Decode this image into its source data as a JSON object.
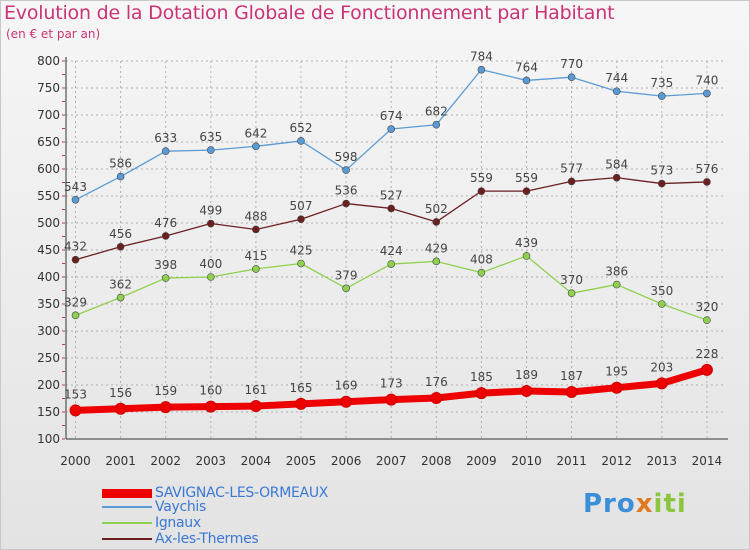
{
  "title": "Evolution de la Dotation Globale de Fonctionnement par Habitant",
  "subtitle": "(en € et par an)",
  "logo": {
    "part1": "Pro",
    "part2": "x",
    "part3": "iti"
  },
  "colors": {
    "savignac": "#ee0000",
    "vaychis": "#5b9bd5",
    "ignaux": "#8fd14f",
    "ax": "#6b1f1f",
    "grid": "#b0b0b0",
    "title": "#cc3377"
  },
  "chart_data": {
    "type": "line",
    "x": [
      "2000",
      "2001",
      "2002",
      "2003",
      "2004",
      "2005",
      "2006",
      "2007",
      "2008",
      "2009",
      "2010",
      "2011",
      "2012",
      "2013",
      "2014"
    ],
    "ylim": [
      100,
      800
    ],
    "yticks": [
      100,
      150,
      200,
      250,
      300,
      350,
      400,
      450,
      500,
      550,
      600,
      650,
      700,
      750,
      800
    ],
    "grid": true,
    "legend_position": "bottom-left",
    "series": [
      {
        "name": "SAVIGNAC-LES-ORMEAUX",
        "key": "savignac",
        "values": [
          153,
          156,
          159,
          160,
          161,
          165,
          169,
          173,
          176,
          185,
          189,
          187,
          195,
          203,
          228
        ]
      },
      {
        "name": "Vaychis",
        "key": "vaychis",
        "values": [
          543,
          586,
          633,
          635,
          642,
          652,
          598,
          674,
          682,
          784,
          764,
          770,
          744,
          735,
          740
        ]
      },
      {
        "name": "Ignaux",
        "key": "ignaux",
        "values": [
          329,
          362,
          398,
          400,
          415,
          425,
          379,
          424,
          429,
          408,
          439,
          370,
          386,
          350,
          320
        ]
      },
      {
        "name": "Ax-les-Thermes",
        "key": "ax",
        "values": [
          432,
          456,
          476,
          499,
          488,
          507,
          536,
          527,
          502,
          559,
          559,
          577,
          584,
          573,
          576
        ]
      }
    ]
  }
}
